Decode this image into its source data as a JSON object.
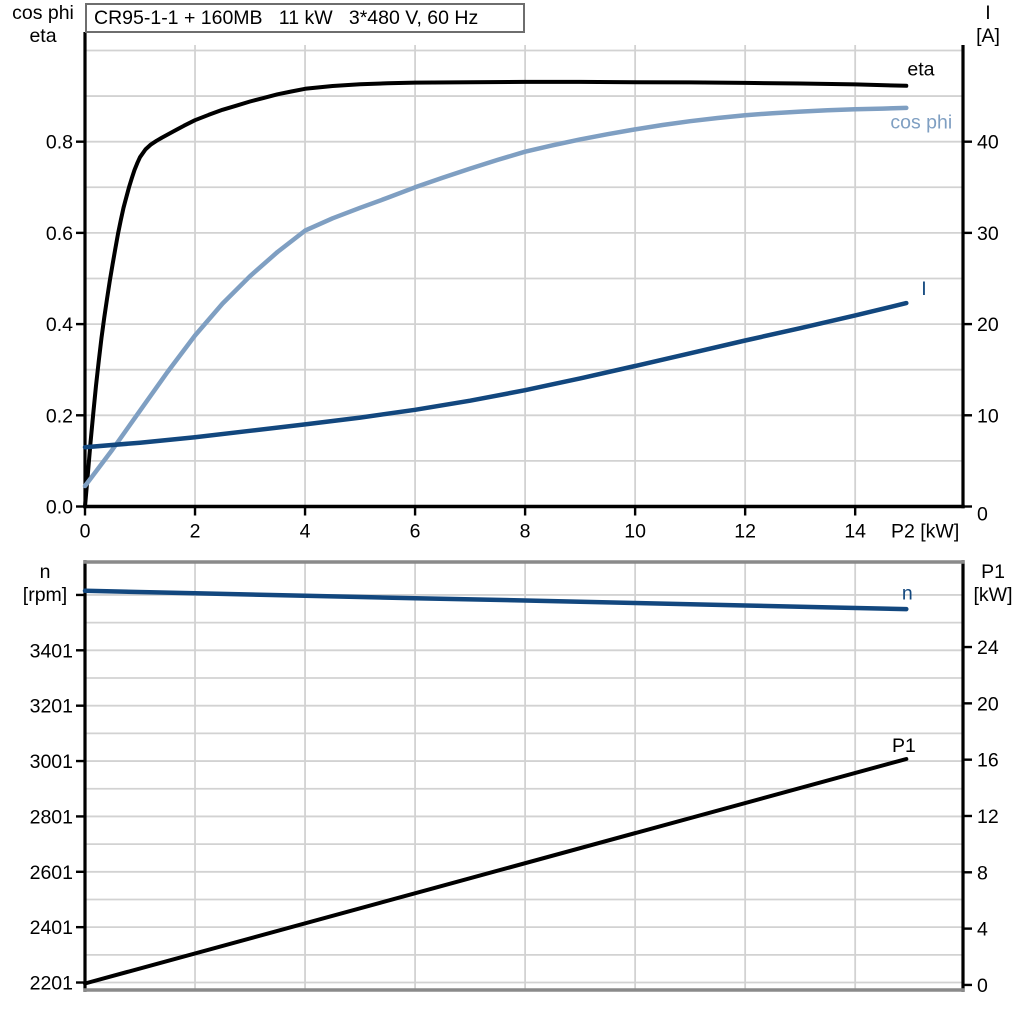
{
  "header": {
    "title": "CR95-1-1 + 160MB   11 kW   3*480 V, 60 Hz"
  },
  "colors": {
    "curve_black": "#000000",
    "curve_dark_blue": "#12477e",
    "curve_light_blue": "#7f9fc2",
    "grid": "#d2d2d2",
    "frame_gray": "#8a8a8a",
    "axis_black": "#000000",
    "text": "#000000",
    "background": "#ffffff"
  },
  "chart_data": [
    {
      "id": "upper-chart",
      "type": "line",
      "corner_left": [
        "cos phi",
        "eta"
      ],
      "corner_right": [
        "I",
        "[A]"
      ],
      "xlabel": "P2 [kW]",
      "x_axis": {
        "min": 0,
        "max": 15.96,
        "grid": [
          2,
          4,
          6,
          8,
          10,
          12,
          14
        ],
        "ticks": [
          {
            "v": 0,
            "l": "0"
          },
          {
            "v": 2,
            "l": "2"
          },
          {
            "v": 4,
            "l": "4"
          },
          {
            "v": 6,
            "l": "6"
          },
          {
            "v": 8,
            "l": "8"
          },
          {
            "v": 10,
            "l": "10"
          },
          {
            "v": 12,
            "l": "12"
          },
          {
            "v": 14,
            "l": "14"
          }
        ]
      },
      "y_left": {
        "label": "cos phi / eta",
        "min": 0,
        "max": 1.012,
        "grid": [
          0.1,
          0.2,
          0.3,
          0.4,
          0.5,
          0.6,
          0.7,
          0.8,
          0.9,
          1.0
        ],
        "ticks": [
          {
            "v": 0,
            "l": "0.0"
          },
          {
            "v": 0.2,
            "l": "0.2"
          },
          {
            "v": 0.4,
            "l": "0.4"
          },
          {
            "v": 0.6,
            "l": "0.6"
          },
          {
            "v": 0.8,
            "l": "0.8"
          }
        ]
      },
      "y_right": {
        "label": "I [A]",
        "min": 0,
        "max": 50.6,
        "ticks": [
          {
            "v": 0,
            "l": "0",
            "dy": 7
          },
          {
            "v": 10,
            "l": "10"
          },
          {
            "v": 20,
            "l": "20"
          },
          {
            "v": 30,
            "l": "30"
          },
          {
            "v": 40,
            "l": "40"
          }
        ]
      },
      "series": [
        {
          "name": "eta",
          "axis": "left",
          "color": "#000000",
          "width": 4,
          "label": {
            "text": "eta",
            "x": 14.95,
            "y": 0.945
          },
          "points": [
            [
              0,
              0
            ],
            [
              0.05,
              0.07
            ],
            [
              0.1,
              0.14
            ],
            [
              0.15,
              0.205
            ],
            [
              0.2,
              0.265
            ],
            [
              0.25,
              0.32
            ],
            [
              0.3,
              0.37
            ],
            [
              0.35,
              0.415
            ],
            [
              0.4,
              0.455
            ],
            [
              0.45,
              0.495
            ],
            [
              0.5,
              0.53
            ],
            [
              0.55,
              0.565
            ],
            [
              0.6,
              0.598
            ],
            [
              0.65,
              0.628
            ],
            [
              0.7,
              0.655
            ],
            [
              0.75,
              0.678
            ],
            [
              0.8,
              0.7
            ],
            [
              0.85,
              0.72
            ],
            [
              0.9,
              0.738
            ],
            [
              0.95,
              0.753
            ],
            [
              1,
              0.766
            ],
            [
              1.1,
              0.783
            ],
            [
              1.2,
              0.794
            ],
            [
              1.3,
              0.802
            ],
            [
              1.4,
              0.809
            ],
            [
              1.6,
              0.822
            ],
            [
              1.8,
              0.835
            ],
            [
              2,
              0.847
            ],
            [
              2.25,
              0.859
            ],
            [
              2.5,
              0.87
            ],
            [
              2.75,
              0.879
            ],
            [
              3,
              0.888
            ],
            [
              3.25,
              0.896
            ],
            [
              3.5,
              0.904
            ],
            [
              3.75,
              0.91
            ],
            [
              4,
              0.916
            ],
            [
              4.25,
              0.919
            ],
            [
              4.5,
              0.922
            ],
            [
              5,
              0.926
            ],
            [
              5.5,
              0.928
            ],
            [
              6,
              0.9295
            ],
            [
              7,
              0.9305
            ],
            [
              8,
              0.931
            ],
            [
              9,
              0.931
            ],
            [
              10,
              0.9305
            ],
            [
              11,
              0.93
            ],
            [
              12,
              0.929
            ],
            [
              13,
              0.9275
            ],
            [
              14,
              0.9255
            ],
            [
              14.93,
              0.9225
            ]
          ]
        },
        {
          "name": "cos phi",
          "axis": "left",
          "color": "#7f9fc2",
          "width": 4.5,
          "label": {
            "text": "cos phi",
            "x": 14.64,
            "y": 0.829
          },
          "points": [
            [
              0,
              0.045
            ],
            [
              0.5,
              0.125
            ],
            [
              1,
              0.21
            ],
            [
              1.5,
              0.295
            ],
            [
              2,
              0.375
            ],
            [
              2.5,
              0.445
            ],
            [
              3,
              0.505
            ],
            [
              3.5,
              0.558
            ],
            [
              4,
              0.605
            ],
            [
              4.5,
              0.632
            ],
            [
              5,
              0.655
            ],
            [
              5.5,
              0.677
            ],
            [
              6,
              0.7
            ],
            [
              6.5,
              0.721
            ],
            [
              7,
              0.741
            ],
            [
              7.5,
              0.76
            ],
            [
              8,
              0.778
            ],
            [
              8.5,
              0.792
            ],
            [
              9,
              0.805
            ],
            [
              9.5,
              0.8165
            ],
            [
              10,
              0.827
            ],
            [
              10.5,
              0.8365
            ],
            [
              11,
              0.845
            ],
            [
              11.5,
              0.852
            ],
            [
              12,
              0.858
            ],
            [
              12.5,
              0.8625
            ],
            [
              13,
              0.866
            ],
            [
              13.5,
              0.869
            ],
            [
              14,
              0.871
            ],
            [
              14.5,
              0.8725
            ],
            [
              14.93,
              0.874
            ]
          ]
        },
        {
          "name": "I",
          "axis": "right",
          "color": "#12477e",
          "width": 4.5,
          "label": {
            "text": "I",
            "x": 15.2,
            "y": 23.2
          },
          "points": [
            [
              0,
              6.5
            ],
            [
              1,
              7.0
            ],
            [
              2,
              7.6
            ],
            [
              3,
              8.3
            ],
            [
              4,
              9.0
            ],
            [
              5,
              9.75
            ],
            [
              6,
              10.6
            ],
            [
              7,
              11.6
            ],
            [
              8,
              12.75
            ],
            [
              9,
              14.05
            ],
            [
              10,
              15.4
            ],
            [
              11,
              16.8
            ],
            [
              12,
              18.2
            ],
            [
              13,
              19.55
            ],
            [
              14,
              20.95
            ],
            [
              14.93,
              22.3
            ]
          ]
        }
      ]
    },
    {
      "id": "lower-chart",
      "type": "line",
      "corner_left": [
        "n",
        "[rpm]"
      ],
      "corner_right": [
        "P1",
        "[kW]"
      ],
      "xlabel": "",
      "x_axis": {
        "min": 0,
        "max": 15.96,
        "grid": [
          2,
          4,
          6,
          8,
          10,
          12,
          14
        ],
        "ticks": []
      },
      "y_left": {
        "label": "n [rpm]",
        "min": 2174,
        "max": 3720,
        "grid": [
          2201,
          2301,
          2401,
          2501,
          2601,
          2701,
          2801,
          2901,
          3001,
          3101,
          3201,
          3301,
          3401,
          3501,
          3601
        ],
        "ticks": [
          {
            "v": 2201,
            "l": "2201"
          },
          {
            "v": 2401,
            "l": "2401"
          },
          {
            "v": 2601,
            "l": "2601"
          },
          {
            "v": 2801,
            "l": "2801"
          },
          {
            "v": 3001,
            "l": "3001"
          },
          {
            "v": 3201,
            "l": "3201"
          },
          {
            "v": 3401,
            "l": "3401"
          },
          {
            "v": 3601,
            "l": ""
          }
        ]
      },
      "y_right": {
        "label": "P1 [kW]",
        "min": -0.36,
        "max": 30.04,
        "ticks": [
          {
            "v": 0,
            "l": "0"
          },
          {
            "v": 4,
            "l": "4"
          },
          {
            "v": 8,
            "l": "8"
          },
          {
            "v": 12,
            "l": "12"
          },
          {
            "v": 16,
            "l": "16"
          },
          {
            "v": 20,
            "l": "20"
          },
          {
            "v": 24,
            "l": "24"
          }
        ]
      },
      "series": [
        {
          "name": "n",
          "axis": "left",
          "color": "#12477e",
          "width": 4.5,
          "label": {
            "text": "n",
            "x": 14.85,
            "y": 3584
          },
          "points": [
            [
              0,
              3616
            ],
            [
              2,
              3607
            ],
            [
              4,
              3598
            ],
            [
              6,
              3589
            ],
            [
              8,
              3581
            ],
            [
              10,
              3572
            ],
            [
              12,
              3563
            ],
            [
              13.5,
              3556
            ],
            [
              14.93,
              3550
            ]
          ]
        },
        {
          "name": "P1",
          "axis": "right",
          "color": "#000000",
          "width": 4,
          "label": {
            "text": "P1",
            "x": 14.67,
            "y": 16.55
          },
          "points": [
            [
              0,
              0.1
            ],
            [
              14.93,
              16.05
            ]
          ]
        }
      ]
    }
  ]
}
